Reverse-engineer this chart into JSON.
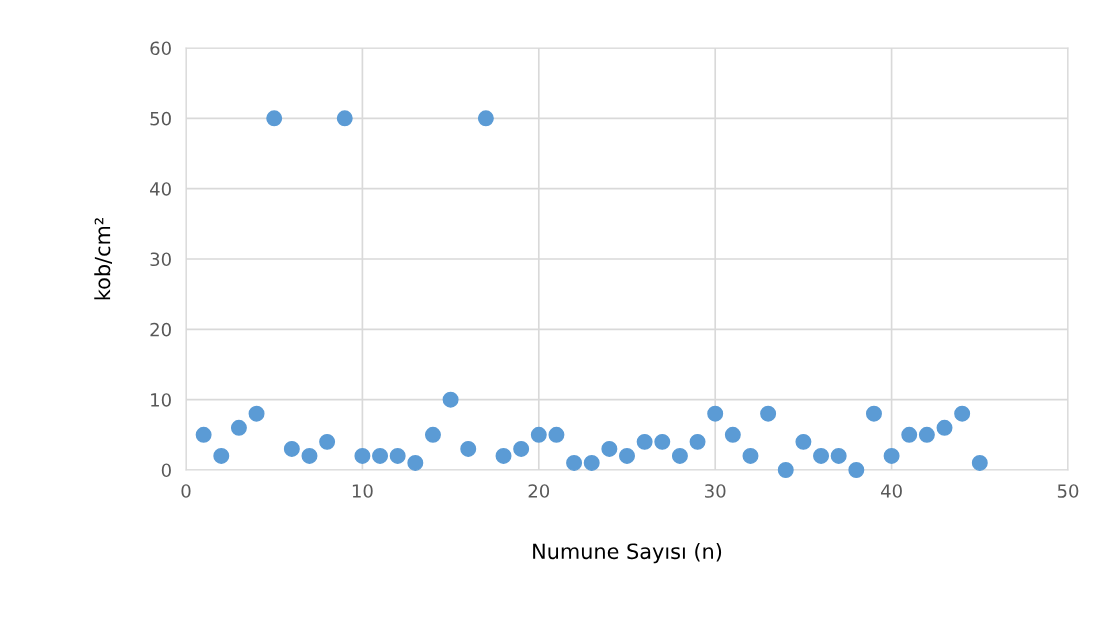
{
  "chart_data": {
    "type": "scatter",
    "xlabel": "Numune Sayısı (n)",
    "ylabel": "kob/cm²",
    "x": [
      1,
      2,
      3,
      4,
      5,
      6,
      7,
      8,
      9,
      10,
      11,
      12,
      13,
      14,
      15,
      16,
      17,
      18,
      19,
      20,
      21,
      22,
      23,
      24,
      25,
      26,
      27,
      28,
      29,
      30,
      31,
      32,
      33,
      34,
      35,
      36,
      37,
      38,
      39,
      40,
      41,
      42,
      43,
      44,
      45
    ],
    "values": [
      5,
      2,
      6,
      8,
      50,
      3,
      2,
      4,
      50,
      2,
      2,
      2,
      1,
      5,
      10,
      3,
      50,
      2,
      3,
      5,
      5,
      1,
      1,
      3,
      2,
      4,
      4,
      2,
      4,
      8,
      5,
      2,
      8,
      0,
      4,
      2,
      2,
      0,
      8,
      2,
      5,
      5,
      6,
      8,
      1
    ],
    "color": "#5b9bd5",
    "marker": "circle",
    "xlim": [
      0,
      50
    ],
    "xticks": [
      0,
      10,
      20,
      30,
      40,
      50
    ],
    "ylim": [
      0,
      60
    ],
    "yticks": [
      0,
      10,
      20,
      30,
      40,
      50,
      60
    ],
    "grid": true
  }
}
